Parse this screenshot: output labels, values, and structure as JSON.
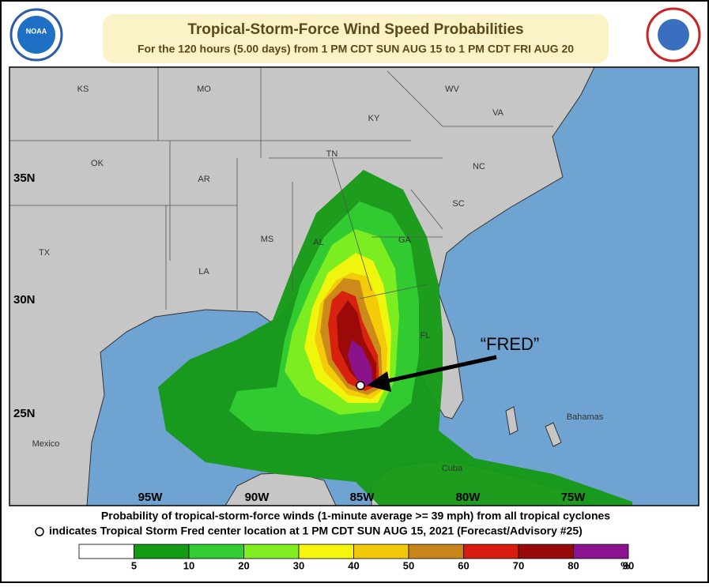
{
  "header": {
    "title": "Tropical-Storm-Force Wind Speed Probabilities",
    "subtitle": "For the 120 hours (5.00 days) from 1 PM CDT SUN AUG 15 to 1 PM CDT FRI AUG 20",
    "logo_left": "NOAA"
  },
  "map": {
    "state_labels": [
      "KS",
      "MO",
      "WV",
      "KY",
      "VA",
      "TN",
      "OK",
      "NC",
      "AR",
      "SC",
      "MS",
      "AL",
      "GA",
      "TX",
      "LA",
      "FL"
    ],
    "region_labels": [
      "Mexico",
      "Cuba",
      "Bahamas"
    ],
    "lat_labels": [
      "35N",
      "30N",
      "25N"
    ],
    "lon_labels": [
      "95W",
      "90W",
      "85W",
      "80W",
      "75W"
    ],
    "annotation": "“FRED”"
  },
  "caption": {
    "line1": "Probability of tropical-storm-force winds (1-minute average >= 39 mph) from all tropical cyclones",
    "line2": "indicates Tropical Storm Fred center location at 1 PM CDT SUN AUG 15, 2021 (Forecast/Advisory #25)"
  },
  "legend": {
    "labels": [
      "5",
      "10",
      "20",
      "30",
      "40",
      "50",
      "60",
      "70",
      "80",
      "90"
    ],
    "unit": "%",
    "colors": [
      "#ffffff",
      "#149a14",
      "#33cc33",
      "#80ee20",
      "#f6f60c",
      "#f2c80a",
      "#c8861a",
      "#d81c10",
      "#980a0a",
      "#8a1490"
    ]
  }
}
